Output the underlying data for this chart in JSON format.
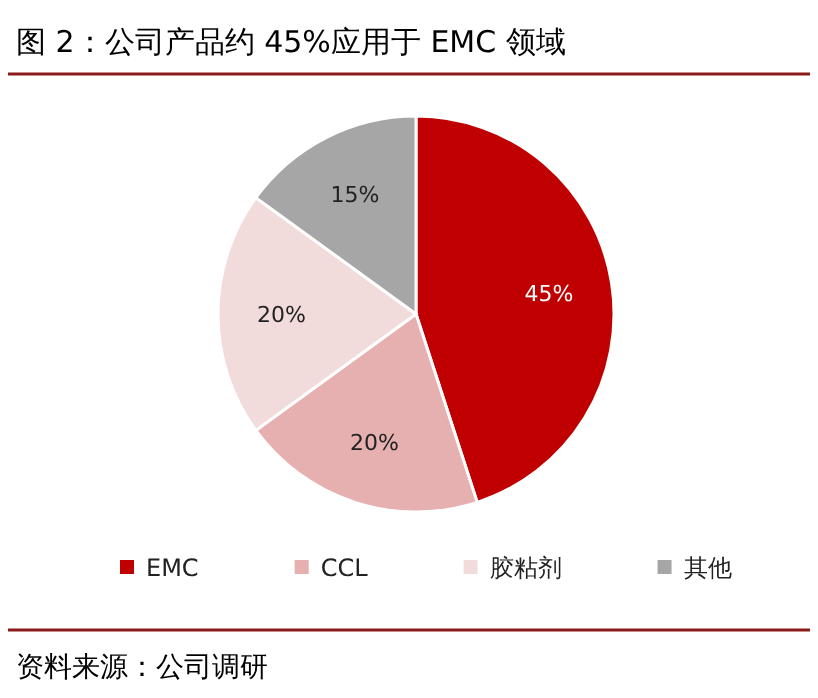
{
  "chart_data": {
    "type": "pie",
    "title": "图 2：公司产品约 45%应用于 EMC 领域",
    "categories": [
      "EMC",
      "CCL",
      "胶粘剂",
      "其他"
    ],
    "values": [
      45,
      20,
      20,
      15
    ],
    "colors": [
      "#c00000",
      "#e6b0b0",
      "#f2dcdb",
      "#a6a6a6"
    ],
    "value_labels": [
      "45%",
      "20%",
      "20%",
      "15%"
    ],
    "legend": "bottom",
    "annotations": [
      "资料来源：公司调研"
    ]
  }
}
